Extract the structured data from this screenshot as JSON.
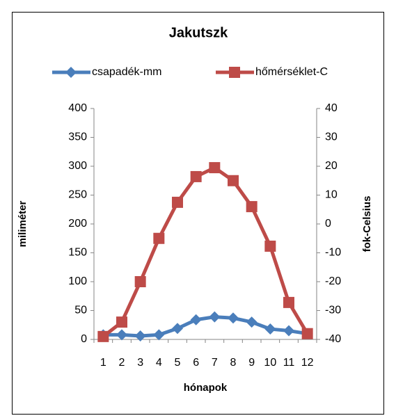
{
  "chart_data": {
    "type": "line",
    "title": "Jakutszk",
    "categories": [
      "1",
      "2",
      "3",
      "4",
      "5",
      "6",
      "7",
      "8",
      "9",
      "10",
      "11",
      "12"
    ],
    "series": [
      {
        "name": "csapadék-mm",
        "color": "#4a7ebb",
        "marker": "diamond",
        "axis": "y",
        "values": [
          8,
          8,
          6,
          8,
          19,
          34,
          39,
          37,
          30,
          18,
          15,
          10
        ]
      },
      {
        "name": "hőmérséklet-C",
        "color": "#be4b48",
        "marker": "square",
        "axis": "y2",
        "values": [
          -39,
          -34,
          -20,
          -5,
          7.5,
          16.4,
          19.5,
          15,
          6,
          -7.7,
          -27.2,
          -38
        ]
      }
    ],
    "ylabel": "miliméter",
    "y2label": "fok-Celsius",
    "xlabel": "hónapok",
    "ylim": [
      0,
      400
    ],
    "yticks": [
      0,
      50,
      100,
      150,
      200,
      250,
      300,
      350,
      400
    ],
    "y2lim": [
      -40,
      40
    ],
    "y2ticks": [
      -40,
      -30,
      -20,
      -10,
      0,
      10,
      20,
      30,
      40
    ],
    "grid": false,
    "legend": "top"
  }
}
